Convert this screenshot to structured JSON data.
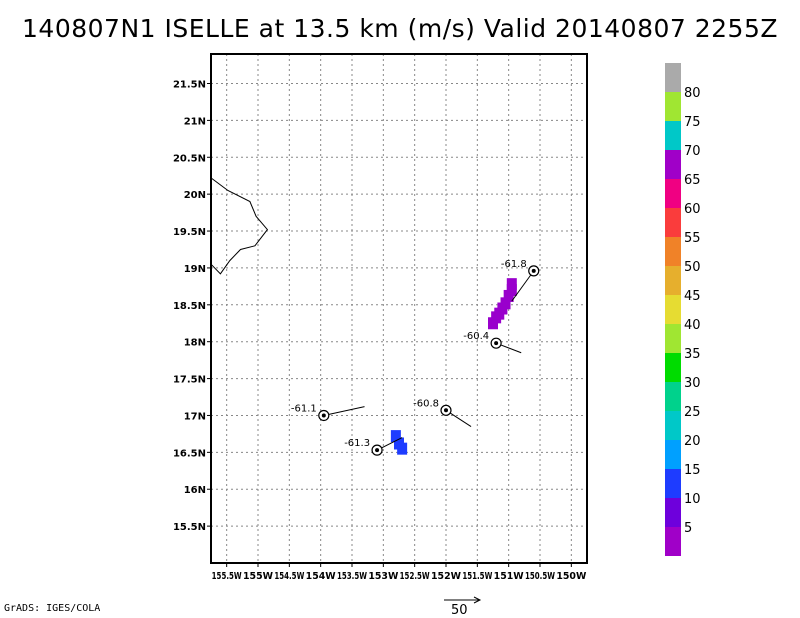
{
  "title": "140807N1 ISELLE at 13.5 km (m/s) Valid 20140807 2255Z",
  "footer": "GrADS: IGES/COLA",
  "map": {
    "lat_range": [
      15.0,
      21.9
    ],
    "lon_range": [
      -155.75,
      -149.75
    ],
    "lat_labels": [
      {
        "value": 15.5,
        "text": "15.5N"
      },
      {
        "value": 16.0,
        "text": "16N"
      },
      {
        "value": 16.5,
        "text": "16.5N"
      },
      {
        "value": 17.0,
        "text": "17N"
      },
      {
        "value": 17.5,
        "text": "17.5N"
      },
      {
        "value": 18.0,
        "text": "18N"
      },
      {
        "value": 18.5,
        "text": "18.5N"
      },
      {
        "value": 19.0,
        "text": "19N"
      },
      {
        "value": 19.5,
        "text": "19.5N"
      },
      {
        "value": 20.0,
        "text": "20N"
      },
      {
        "value": 20.5,
        "text": "20.5N"
      },
      {
        "value": 21.0,
        "text": "21N"
      },
      {
        "value": 21.5,
        "text": "21.5N"
      }
    ],
    "lon_labels": [
      {
        "value": -155.5,
        "text": "155.5W"
      },
      {
        "value": -155.0,
        "text": "155W"
      },
      {
        "value": -154.5,
        "text": "154.5W"
      },
      {
        "value": -154.0,
        "text": "154W"
      },
      {
        "value": -153.5,
        "text": "153.5W"
      },
      {
        "value": -153.0,
        "text": "153W"
      },
      {
        "value": -152.5,
        "text": "152.5W"
      },
      {
        "value": -152.0,
        "text": "152W"
      },
      {
        "value": -151.5,
        "text": "151.5W"
      },
      {
        "value": -151.0,
        "text": "151W"
      },
      {
        "value": -150.5,
        "text": "150.5W"
      },
      {
        "value": -150.0,
        "text": "150W"
      }
    ],
    "grid": "dotted",
    "coastline": [
      [
        -155.75,
        20.22
      ],
      [
        -155.48,
        20.05
      ],
      [
        -155.13,
        19.9
      ],
      [
        -155.03,
        19.7
      ],
      [
        -154.85,
        19.52
      ],
      [
        -155.05,
        19.3
      ],
      [
        -155.28,
        19.25
      ],
      [
        -155.45,
        19.1
      ],
      [
        -155.6,
        18.92
      ],
      [
        -155.75,
        19.05
      ]
    ],
    "centers": [
      {
        "label": "-61.8",
        "lon": -150.6,
        "lat": 18.96,
        "wind_to": [
          -150.95,
          18.55
        ]
      },
      {
        "label": "-60.4",
        "lon": -151.2,
        "lat": 17.98,
        "wind_to": [
          -150.8,
          17.85
        ]
      },
      {
        "label": "-61.1",
        "lon": -153.95,
        "lat": 17.0,
        "wind_to": [
          -153.3,
          17.12
        ]
      },
      {
        "label": "-60.8",
        "lon": -152.0,
        "lat": 17.07,
        "wind_to": [
          -151.6,
          16.85
        ]
      },
      {
        "label": "-61.3",
        "lon": -153.1,
        "lat": 16.53,
        "wind_to": [
          -152.7,
          16.7
        ]
      }
    ],
    "rain_cells": [
      {
        "lon": -151.25,
        "lat": 18.25,
        "color": "#9900cc"
      },
      {
        "lon": -151.2,
        "lat": 18.33,
        "color": "#9900cc"
      },
      {
        "lon": -151.15,
        "lat": 18.38,
        "color": "#9900cc"
      },
      {
        "lon": -151.1,
        "lat": 18.45,
        "color": "#9900cc"
      },
      {
        "lon": -151.05,
        "lat": 18.52,
        "color": "#9900cc"
      },
      {
        "lon": -151.0,
        "lat": 18.62,
        "color": "#9900cc"
      },
      {
        "lon": -150.95,
        "lat": 18.7,
        "color": "#9900cc"
      },
      {
        "lon": -150.95,
        "lat": 18.78,
        "color": "#9900cc"
      },
      {
        "lon": -152.8,
        "lat": 16.72,
        "color": "#1e3cff"
      },
      {
        "lon": -152.75,
        "lat": 16.62,
        "color": "#1e3cff"
      },
      {
        "lon": -152.7,
        "lat": 16.55,
        "color": "#1e3cff"
      }
    ]
  },
  "colorbar": {
    "colors": [
      "#a000c8",
      "#6e00dc",
      "#1e3cff",
      "#00a0ff",
      "#00c8c8",
      "#00d28c",
      "#00dc00",
      "#a0e632",
      "#e6dc32",
      "#e6af2d",
      "#f08228",
      "#fa3c3c",
      "#f00082",
      "#a000c8",
      "#00c8c8",
      "#a0e632",
      "#aaaaaa"
    ],
    "labels": [
      "5",
      "10",
      "15",
      "20",
      "25",
      "30",
      "35",
      "40",
      "45",
      "50",
      "55",
      "60",
      "65",
      "70",
      "75",
      "80"
    ]
  },
  "scale_arrow": {
    "label": "50"
  }
}
